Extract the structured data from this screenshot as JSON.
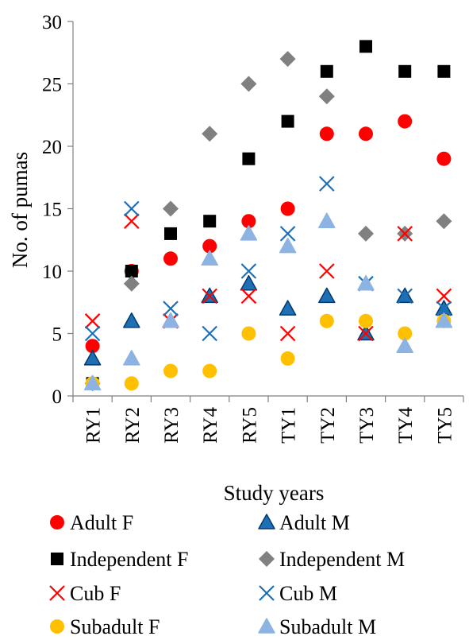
{
  "chart_data": {
    "type": "scatter",
    "xlabel": "Study years",
    "ylabel": "No. of pumas",
    "ylim": [
      0,
      30
    ],
    "yticks": [
      "0",
      "5",
      "10",
      "15",
      "20",
      "25",
      "30"
    ],
    "grid": false,
    "legend_position": "bottom",
    "categories": [
      "RY1",
      "RY2",
      "RY3",
      "RY4",
      "RY5",
      "TY1",
      "TY2",
      "TY3",
      "TY4",
      "TY5"
    ],
    "series": [
      {
        "name": "Adult F",
        "marker": "circle",
        "color": "#ff0000",
        "values": [
          4,
          10,
          11,
          12,
          14,
          15,
          21,
          21,
          22,
          19
        ]
      },
      {
        "name": "Adult M",
        "marker": "triangle",
        "color": "#1f6fb5",
        "edge": "#003a70",
        "values": [
          3,
          6,
          6,
          8,
          9,
          7,
          8,
          5,
          8,
          7
        ]
      },
      {
        "name": "Independent F",
        "marker": "square",
        "color": "#000000",
        "values": [
          1,
          10,
          13,
          14,
          19,
          22,
          26,
          28,
          26,
          26
        ]
      },
      {
        "name": "Independent M",
        "marker": "diamond",
        "color": "#808080",
        "values": [
          1,
          9,
          15,
          21,
          25,
          27,
          24,
          13,
          13,
          14
        ]
      },
      {
        "name": "Cub F",
        "marker": "x",
        "color": "#ff0000",
        "values": [
          6,
          14,
          6,
          8,
          8,
          5,
          10,
          5,
          13,
          8
        ]
      },
      {
        "name": "Cub M",
        "marker": "x",
        "color": "#1f6fb5",
        "values": [
          5,
          15,
          7,
          5,
          10,
          13,
          17,
          9,
          8,
          7
        ]
      },
      {
        "name": "Subadult F",
        "marker": "circle",
        "color": "#ffc000",
        "values": [
          1,
          1,
          2,
          2,
          5,
          3,
          6,
          6,
          5,
          6
        ]
      },
      {
        "name": "Subadult M",
        "marker": "triangle",
        "color": "#8db3e2",
        "values": [
          1,
          3,
          6,
          11,
          13,
          12,
          14,
          9,
          4,
          6
        ]
      }
    ]
  }
}
